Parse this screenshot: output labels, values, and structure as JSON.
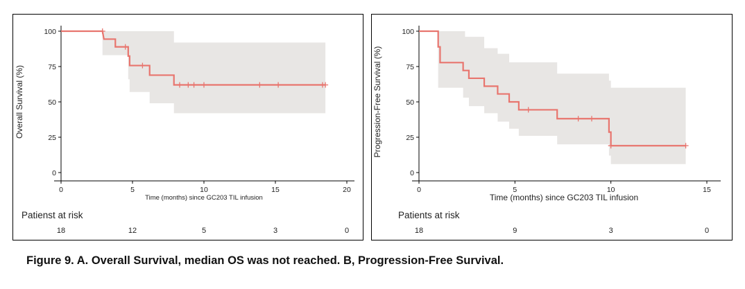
{
  "chart_data": [
    {
      "type": "line",
      "chart_subtype": "kaplan-meier-step",
      "ylabel": "Overall Survival  (%)",
      "xlabel": "Time (months) since GC203 TIL infusion",
      "xlim": [
        0,
        20
      ],
      "ylim": [
        0,
        100
      ],
      "x_ticks": [
        0,
        5,
        10,
        15,
        20
      ],
      "y_ticks": [
        0,
        25,
        50,
        75,
        100
      ],
      "line_color": "#e8756e",
      "ci_color": "#e8e6e4",
      "grid": false,
      "steps": [
        [
          0,
          100
        ],
        [
          2.9,
          100
        ],
        [
          3.0,
          94.4
        ],
        [
          3.8,
          94.4
        ],
        [
          3.8,
          88.9
        ],
        [
          4.7,
          88.9
        ],
        [
          4.7,
          82.4
        ],
        [
          4.8,
          82.4
        ],
        [
          4.8,
          75.7
        ],
        [
          6.2,
          75.7
        ],
        [
          6.2,
          68.9
        ],
        [
          7.9,
          68.9
        ],
        [
          7.9,
          62.0
        ],
        [
          18.5,
          62.0
        ]
      ],
      "ci_upper": [
        [
          0,
          100
        ],
        [
          7.9,
          100
        ],
        [
          7.9,
          92
        ],
        [
          18.5,
          92
        ]
      ],
      "ci_lower": [
        [
          0,
          100
        ],
        [
          2.9,
          100
        ],
        [
          2.9,
          83
        ],
        [
          4.7,
          83
        ],
        [
          4.7,
          66
        ],
        [
          4.8,
          66
        ],
        [
          4.8,
          57
        ],
        [
          6.2,
          57
        ],
        [
          6.2,
          49
        ],
        [
          7.9,
          49
        ],
        [
          7.9,
          42
        ],
        [
          18.5,
          42
        ]
      ],
      "censored": [
        [
          2.9,
          100
        ],
        [
          4.5,
          88.9
        ],
        [
          5.7,
          75.7
        ],
        [
          8.3,
          62.0
        ],
        [
          8.9,
          62.0
        ],
        [
          9.3,
          62.0
        ],
        [
          10.0,
          62.0
        ],
        [
          13.9,
          62.0
        ],
        [
          15.2,
          62.0
        ],
        [
          18.3,
          62.0
        ],
        [
          18.5,
          62.0
        ]
      ],
      "risk_table": {
        "title": "Patienst at risk",
        "values": [
          "18",
          "12",
          "5",
          "3",
          "0"
        ],
        "x": [
          0,
          5,
          10,
          15,
          20
        ]
      }
    },
    {
      "type": "line",
      "chart_subtype": "kaplan-meier-step",
      "ylabel": "Progression-Free Survival (%)",
      "xlabel": "Time (months) since GC203 TIL infusion",
      "xlim": [
        0,
        15
      ],
      "ylim": [
        0,
        100
      ],
      "x_ticks": [
        0,
        5,
        10,
        15
      ],
      "y_ticks": [
        0,
        25,
        50,
        75,
        100
      ],
      "line_color": "#e8756e",
      "ci_color": "#e8e6e4",
      "grid": false,
      "steps": [
        [
          0,
          100
        ],
        [
          1.0,
          100
        ],
        [
          1.0,
          88.9
        ],
        [
          1.1,
          88.9
        ],
        [
          1.1,
          77.8
        ],
        [
          2.3,
          77.8
        ],
        [
          2.3,
          72.2
        ],
        [
          2.6,
          72.2
        ],
        [
          2.6,
          66.7
        ],
        [
          3.4,
          66.7
        ],
        [
          3.4,
          61.1
        ],
        [
          4.1,
          61.1
        ],
        [
          4.1,
          55.6
        ],
        [
          4.7,
          55.6
        ],
        [
          4.7,
          50.0
        ],
        [
          5.2,
          50.0
        ],
        [
          5.2,
          44.4
        ],
        [
          7.2,
          44.4
        ],
        [
          7.2,
          38.1
        ],
        [
          9.9,
          38.1
        ],
        [
          9.9,
          28.6
        ],
        [
          10.0,
          28.6
        ],
        [
          10.0,
          19.0
        ],
        [
          13.9,
          19.0
        ]
      ],
      "ci_upper": [
        [
          0,
          100
        ],
        [
          2.4,
          100
        ],
        [
          2.4,
          96
        ],
        [
          3.4,
          96
        ],
        [
          3.4,
          88
        ],
        [
          4.1,
          88
        ],
        [
          4.1,
          84
        ],
        [
          4.7,
          84
        ],
        [
          4.7,
          78
        ],
        [
          7.2,
          78
        ],
        [
          7.2,
          70
        ],
        [
          9.9,
          70
        ],
        [
          9.9,
          65
        ],
        [
          10.0,
          65
        ],
        [
          10.0,
          60
        ],
        [
          13.9,
          60
        ]
      ],
      "ci_lower": [
        [
          0,
          100
        ],
        [
          1.0,
          100
        ],
        [
          1.0,
          60
        ],
        [
          2.3,
          60
        ],
        [
          2.3,
          53
        ],
        [
          2.6,
          53
        ],
        [
          2.6,
          47
        ],
        [
          3.4,
          47
        ],
        [
          3.4,
          42
        ],
        [
          4.1,
          42
        ],
        [
          4.1,
          36
        ],
        [
          4.7,
          36
        ],
        [
          4.7,
          31
        ],
        [
          5.2,
          31
        ],
        [
          5.2,
          26
        ],
        [
          7.2,
          26
        ],
        [
          7.2,
          20
        ],
        [
          9.9,
          20
        ],
        [
          9.9,
          12
        ],
        [
          10.0,
          12
        ],
        [
          10.0,
          6
        ],
        [
          13.9,
          6
        ]
      ],
      "censored": [
        [
          5.7,
          44.4
        ],
        [
          8.3,
          38.1
        ],
        [
          9.0,
          38.1
        ],
        [
          10.0,
          19.0
        ],
        [
          13.9,
          19.0
        ]
      ],
      "risk_table": {
        "title": "Patients at risk",
        "values": [
          "18",
          "9",
          "3",
          "0"
        ],
        "x": [
          0,
          5,
          10,
          15
        ]
      }
    }
  ],
  "caption": "Figure 9. A. Overall Survival, median OS was not reached. B, Progression-Free Survival."
}
